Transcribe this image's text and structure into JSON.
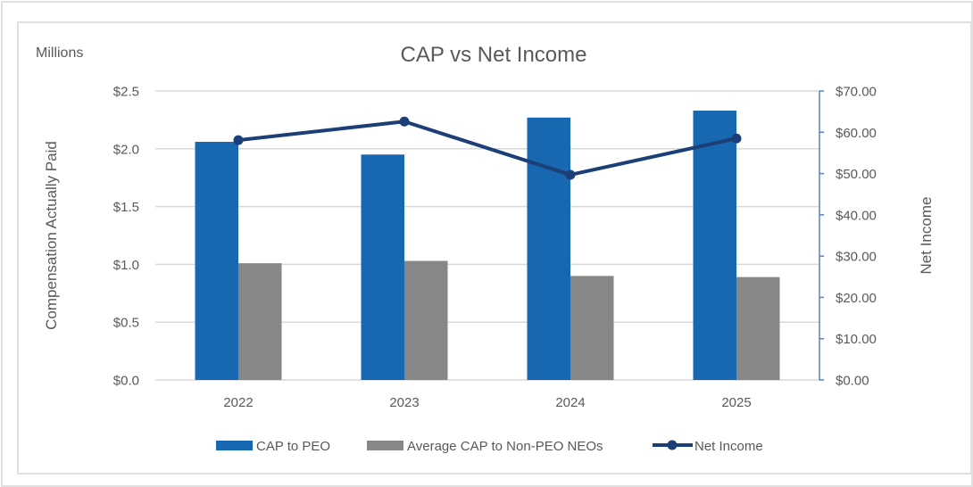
{
  "chart_data": {
    "type": "bar",
    "title": "CAP vs Net Income",
    "units_label": "Millions",
    "categories": [
      "2022",
      "2023",
      "2024",
      "2025"
    ],
    "series": [
      {
        "name": "CAP to PEO",
        "type": "bar",
        "axis": "left",
        "color": "#1767b1",
        "values": [
          2.06,
          1.95,
          2.27,
          2.33
        ]
      },
      {
        "name": "Average CAP to Non-PEO NEOs",
        "type": "bar",
        "axis": "left",
        "color": "#878787",
        "values": [
          1.01,
          1.03,
          0.9,
          0.89
        ]
      },
      {
        "name": "Net Income",
        "type": "line",
        "axis": "right",
        "color": "#1c3f77",
        "values": [
          58.1,
          62.6,
          49.7,
          58.5
        ]
      }
    ],
    "y_left": {
      "label": "Compensation Actually Paid",
      "range": [
        0,
        2.5
      ],
      "ticks": [
        0,
        0.5,
        1.0,
        1.5,
        2.0,
        2.5
      ],
      "tick_labels": [
        "$0.0",
        "$0.5",
        "$1.0",
        "$1.5",
        "$2.0",
        "$2.5"
      ]
    },
    "y_right": {
      "label": "Net Income",
      "range": [
        0,
        70
      ],
      "ticks": [
        0,
        10,
        20,
        30,
        40,
        50,
        60,
        70
      ],
      "tick_labels": [
        "$0.00",
        "$10.00",
        "$20.00",
        "$30.00",
        "$40.00",
        "$50.00",
        "$60.00",
        "$70.00"
      ],
      "axis_color": "#5a84b8"
    },
    "grid": true,
    "legend_position": "bottom"
  }
}
